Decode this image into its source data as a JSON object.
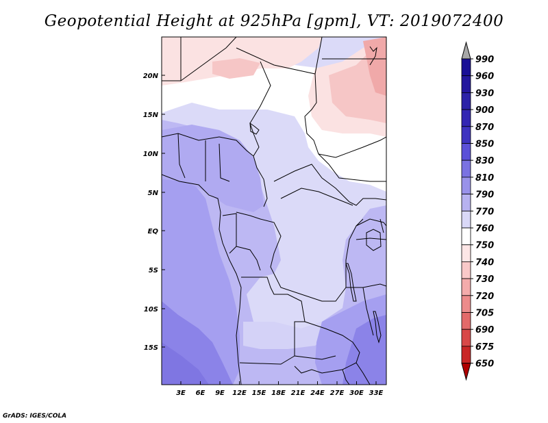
{
  "title": "Geopotential Height at 925hPa [gpm], VT: 2019072400",
  "credit": "GrADS: IGES/COLA",
  "map": {
    "lat_labels": [
      "20N",
      "15N",
      "10N",
      "5N",
      "EQ",
      "5S",
      "10S",
      "15S"
    ],
    "lon_labels": [
      "3E",
      "6E",
      "9E",
      "12E",
      "15E",
      "18E",
      "21E",
      "24E",
      "27E",
      "30E",
      "33E"
    ]
  },
  "colorbar": {
    "levels": [
      "990",
      "960",
      "930",
      "900",
      "870",
      "850",
      "830",
      "810",
      "790",
      "770",
      "760",
      "750",
      "740",
      "730",
      "720",
      "705",
      "690",
      "675",
      "650"
    ],
    "colors": {
      "c990": "#1a0f96",
      "c960": "#24179e",
      "c930": "#2c22a8",
      "c900": "#3326b3",
      "c870": "#3e33c0",
      "c850": "#5b50d8",
      "c830": "#7a72e2",
      "c810": "#9992ea",
      "c790": "#b7b2f0",
      "c770": "#d9d8f7",
      "c760": "#ffffff",
      "c750": "#fde6e6",
      "c740": "#f9c9c9",
      "c730": "#f3abab",
      "c720": "#ec8b8b",
      "c705": "#e36a6a",
      "c690": "#d84848",
      "c675": "#c92626",
      "c650": "#b30d0d",
      "over": "#a8a8a8",
      "under": "#b00000"
    }
  },
  "field_colors": {
    "deep": "#8b83e8",
    "mid": "#a59ff0",
    "light": "#bdb8f3",
    "pale": "#dbdaf8",
    "white": "#ffffff",
    "pink1": "#fbe2e2",
    "pink2": "#f6c6c6",
    "pink3": "#f0a9a9"
  }
}
